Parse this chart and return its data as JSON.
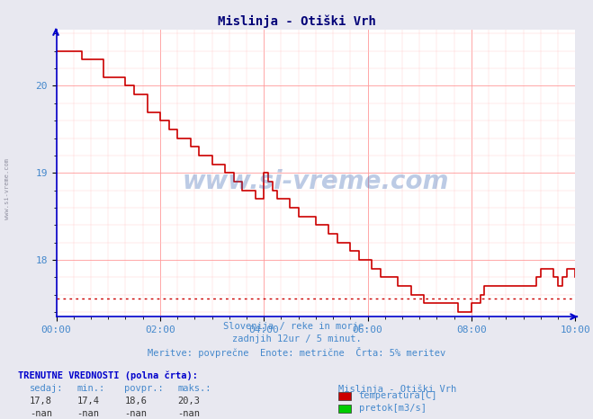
{
  "title": "Mislinja - Otiški Vrh",
  "bg_color": "#e8e8f0",
  "plot_bg_color": "#ffffff",
  "grid_color_major": "#ff9999",
  "grid_color_minor": "#ffcccc",
  "x_label_color": "#4488cc",
  "title_color": "#000077",
  "subtitle_lines": [
    "Slovenija / reke in morje.",
    "zadnjih 12ur / 5 minut.",
    "Meritve: povprečne  Enote: metrične  Črta: 5% meritev"
  ],
  "info_header": "TRENUTNE VREDNOSTI (polna črta):",
  "col_headers": [
    "sedaj:",
    "min.:",
    "povpr.:",
    "maks.:"
  ],
  "row1_vals": [
    "17,8",
    "17,4",
    "18,6",
    "20,3"
  ],
  "row2_vals": [
    "-nan",
    "-nan",
    "-nan",
    "-nan"
  ],
  "legend_title": "Mislinja - Otiški Vrh",
  "legend_items": [
    {
      "label": "temperatura[C]",
      "color": "#cc0000"
    },
    {
      "label": "pretok[m3/s]",
      "color": "#00cc00"
    }
  ],
  "x_ticks": [
    "00:00",
    "02:00",
    "04:00",
    "06:00",
    "08:00",
    "10:00"
  ],
  "x_tick_positions": [
    0,
    24,
    48,
    72,
    96,
    120
  ],
  "x_total_points": 121,
  "ylim": [
    17.35,
    20.65
  ],
  "y_ticks": [
    18,
    19,
    20
  ],
  "hline_y": 17.56,
  "hline_color": "#cc0000",
  "axis_color": "#0000cc",
  "temp_data": [
    20.4,
    20.4,
    20.4,
    20.4,
    20.4,
    20.4,
    20.3,
    20.3,
    20.3,
    20.3,
    20.3,
    20.1,
    20.1,
    20.1,
    20.1,
    20.1,
    20.0,
    20.0,
    19.9,
    19.9,
    19.9,
    19.7,
    19.7,
    19.7,
    19.6,
    19.6,
    19.5,
    19.5,
    19.4,
    19.4,
    19.4,
    19.3,
    19.3,
    19.2,
    19.2,
    19.2,
    19.1,
    19.1,
    19.1,
    19.0,
    19.0,
    18.9,
    18.9,
    18.8,
    18.8,
    18.8,
    18.7,
    18.7,
    19.0,
    18.9,
    18.8,
    18.7,
    18.7,
    18.7,
    18.6,
    18.6,
    18.5,
    18.5,
    18.5,
    18.5,
    18.4,
    18.4,
    18.4,
    18.3,
    18.3,
    18.2,
    18.2,
    18.2,
    18.1,
    18.1,
    18.0,
    18.0,
    18.0,
    17.9,
    17.9,
    17.8,
    17.8,
    17.8,
    17.8,
    17.7,
    17.7,
    17.7,
    17.6,
    17.6,
    17.6,
    17.5,
    17.5,
    17.5,
    17.5,
    17.5,
    17.5,
    17.5,
    17.5,
    17.4,
    17.4,
    17.4,
    17.5,
    17.5,
    17.6,
    17.7,
    17.7,
    17.7,
    17.7,
    17.7,
    17.7,
    17.7,
    17.7,
    17.7,
    17.7,
    17.7,
    17.7,
    17.8,
    17.9,
    17.9,
    17.9,
    17.8,
    17.7,
    17.8,
    17.9,
    17.9,
    17.8
  ]
}
